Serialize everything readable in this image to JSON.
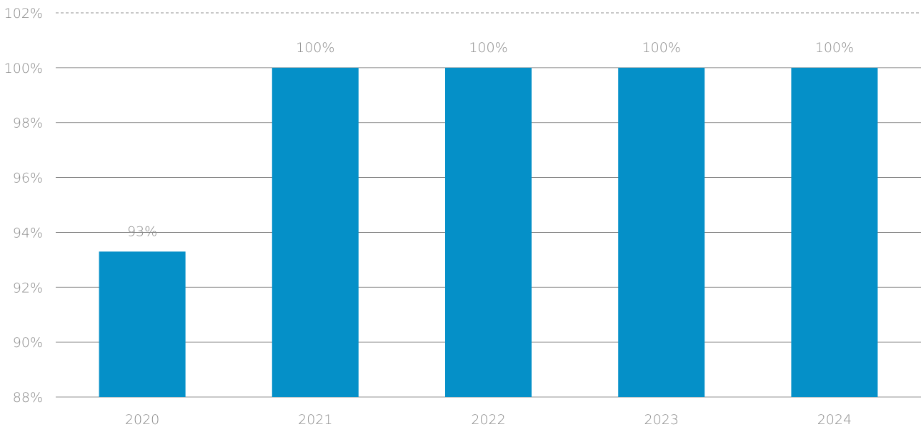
{
  "chart_data": {
    "type": "bar",
    "categories": [
      "2020",
      "2021",
      "2022",
      "2023",
      "2024"
    ],
    "values": [
      93.3,
      100,
      100,
      100,
      100
    ],
    "data_labels": [
      "93%",
      "100%",
      "100%",
      "100%",
      "100%"
    ],
    "title": "",
    "xlabel": "",
    "ylabel": "",
    "ylim": [
      88,
      102
    ],
    "yticks": [
      88,
      90,
      92,
      94,
      96,
      98,
      100,
      102
    ],
    "ytick_labels": [
      "88%",
      "90%",
      "92%",
      "94%",
      "96%",
      "98%",
      "100%",
      "102%"
    ],
    "grid": true,
    "legend": "none",
    "bar_color": "#0590c8"
  }
}
